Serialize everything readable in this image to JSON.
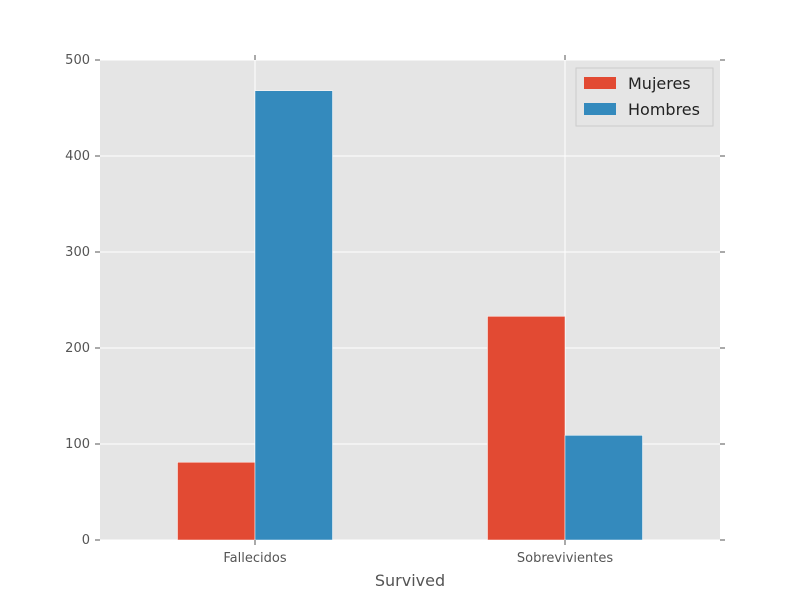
{
  "chart_data": {
    "type": "bar",
    "title": "",
    "xlabel": "Survived",
    "ylabel": "",
    "categories": [
      "Fallecidos",
      "Sobrevivientes"
    ],
    "series": [
      {
        "name": "Mujeres",
        "values": [
          81,
          233
        ],
        "color": "#E24A33"
      },
      {
        "name": "Hombres",
        "values": [
          468,
          109
        ],
        "color": "#348ABD"
      }
    ],
    "ylim": [
      0,
      500
    ],
    "yticks": [
      0,
      100,
      200,
      300,
      400,
      500
    ],
    "grid": true,
    "legend_position": "top-right",
    "plot_background": "#E5E5E5",
    "grid_color": "#FFFFFF"
  }
}
